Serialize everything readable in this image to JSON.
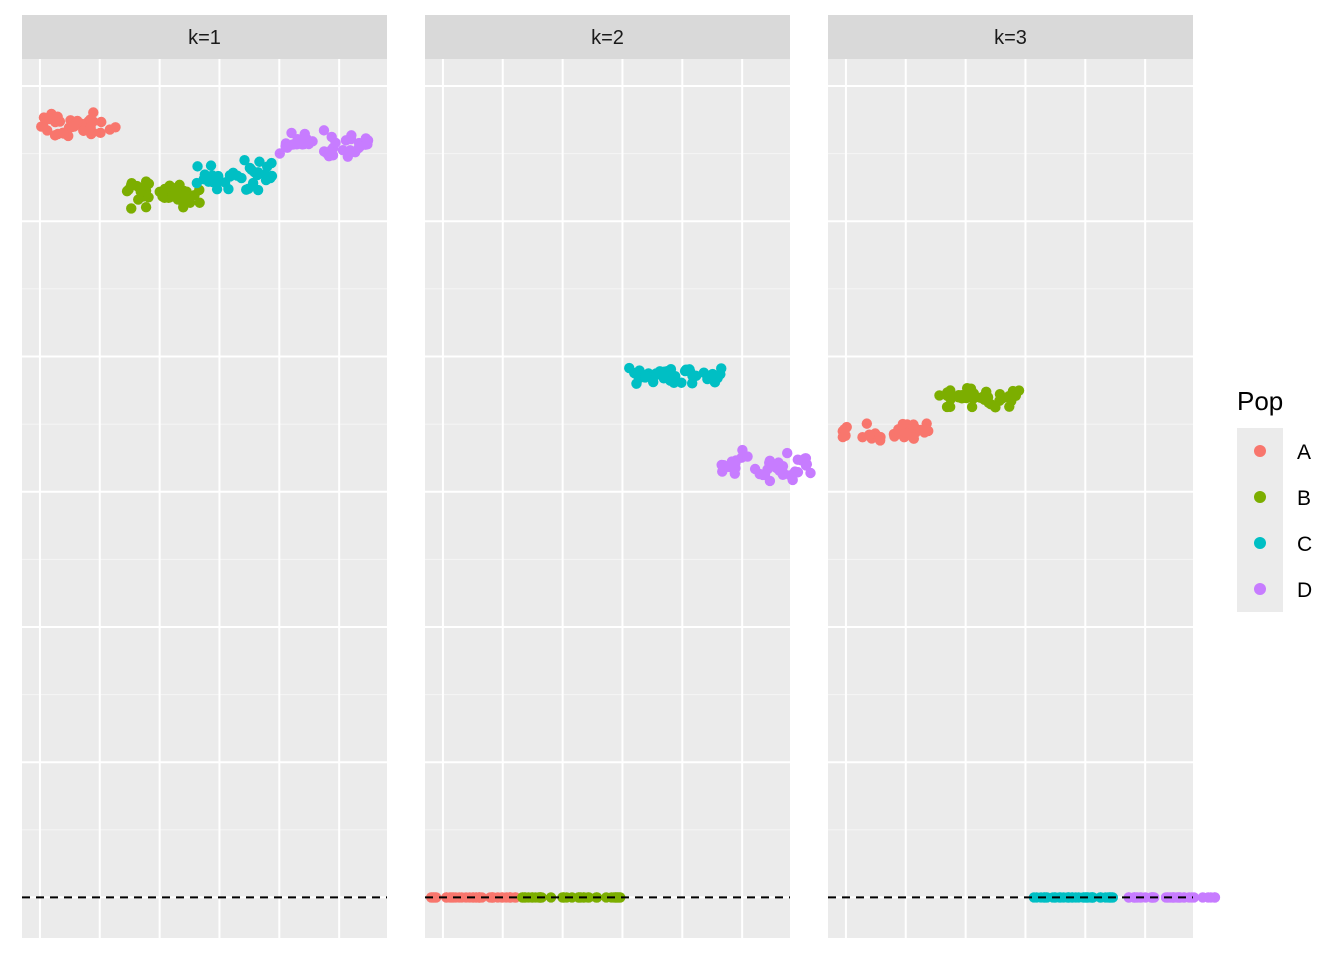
{
  "chart_data": {
    "type": "scatter",
    "facet_by": "k",
    "x_range": [
      -1,
      60
    ],
    "y_range": [
      -0.15,
      3.1
    ],
    "x_grid_values": [
      2,
      12,
      22,
      32,
      42,
      52
    ],
    "y_grid_values": [
      0,
      0.5,
      1.0,
      1.5,
      2.0,
      2.5,
      3.0
    ],
    "reference_line": {
      "y": 0,
      "style": "dashed",
      "color": "#000000"
    },
    "panels": [
      {
        "label": "k=1",
        "groups": [
          {
            "pop": "A",
            "x_range": [
              1,
              15
            ],
            "y_center": 2.85,
            "y_spread": 0.07,
            "n": 40
          },
          {
            "pop": "B",
            "x_range": [
              16,
              29
            ],
            "y_center": 2.6,
            "y_spread": 0.07,
            "n": 40
          },
          {
            "pop": "C",
            "x_range": [
              28,
              41
            ],
            "y_center": 2.67,
            "y_spread": 0.08,
            "n": 40
          },
          {
            "pop": "D",
            "x_range": [
              42,
              57
            ],
            "y_center": 2.78,
            "y_spread": 0.07,
            "n": 40
          }
        ]
      },
      {
        "label": "k=2",
        "groups": [
          {
            "pop": "A",
            "x_range": [
              0,
              15
            ],
            "y_center": 0.0,
            "y_spread": 0.0,
            "n": 40
          },
          {
            "pop": "B",
            "x_range": [
              15,
              32
            ],
            "y_center": 0.0,
            "y_spread": 0.0,
            "n": 40
          },
          {
            "pop": "C",
            "x_range": [
              33,
              49
            ],
            "y_center": 1.93,
            "y_spread": 0.05,
            "n": 40
          },
          {
            "pop": "D",
            "x_range": [
              48,
              64
            ],
            "y_center": 1.6,
            "y_spread": 0.07,
            "n": 40
          }
        ]
      },
      {
        "label": "k=3",
        "groups": [
          {
            "pop": "A",
            "x_range": [
              0,
              16
            ],
            "y_center": 1.72,
            "y_spread": 0.05,
            "n": 40
          },
          {
            "pop": "B",
            "x_range": [
              17,
              31
            ],
            "y_center": 1.85,
            "y_spread": 0.05,
            "n": 40
          },
          {
            "pop": "C",
            "x_range": [
              33,
              47
            ],
            "y_center": 0.0,
            "y_spread": 0.0,
            "n": 40
          },
          {
            "pop": "D",
            "x_range": [
              49,
              64
            ],
            "y_center": 0.0,
            "y_spread": 0.0,
            "n": 40
          }
        ]
      }
    ],
    "legend": {
      "title": "Pop",
      "position": "right",
      "items": [
        {
          "label": "A",
          "color": "#F8766D"
        },
        {
          "label": "B",
          "color": "#7CAE00"
        },
        {
          "label": "C",
          "color": "#00BFC4"
        },
        {
          "label": "D",
          "color": "#C77CFF"
        }
      ]
    }
  }
}
